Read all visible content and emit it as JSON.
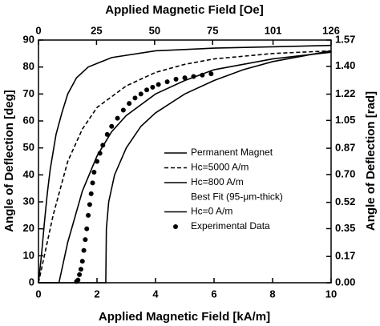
{
  "chart_data": {
    "type": "line",
    "xlabel": "Applied Magnetic Field [kA/m]",
    "x2label": "Applied Magnetic Field [Oe]",
    "ylabel": "Angle of Deflection [deg]",
    "y2label": "Angle of Deflection [rad]",
    "xlim": [
      0,
      10
    ],
    "xticks": [
      0,
      2,
      4,
      6,
      8,
      10
    ],
    "x2lim": [
      0,
      126
    ],
    "x2ticks": [
      0,
      25,
      50,
      75,
      101,
      126
    ],
    "ylim": [
      0,
      90
    ],
    "yticks": [
      0,
      10,
      20,
      30,
      40,
      50,
      60,
      70,
      80,
      90
    ],
    "y2lim": [
      0,
      1.57
    ],
    "y2ticks": [
      {
        "value": 0,
        "label": "0.00"
      },
      0.17,
      0.35,
      0.52,
      {
        "value": 0.7,
        "label": "0.70"
      },
      0.87,
      1.05,
      1.22,
      {
        "value": 1.4,
        "label": "1.40"
      },
      1.57
    ],
    "legend": "center-right",
    "series": [
      {
        "name": "Permanent Magnet",
        "kind": "line",
        "dash": false,
        "color": "#000000",
        "x": [
          0,
          2.3,
          2.32,
          2.4,
          2.6,
          3,
          3.5,
          4,
          5,
          6,
          7,
          8,
          10
        ],
        "values": [
          0,
          0,
          20,
          30,
          40,
          50,
          58,
          63,
          70,
          75,
          79,
          82,
          86
        ]
      },
      {
        "name": "Hc=5000 A/m",
        "kind": "line",
        "dash": true,
        "color": "#000000",
        "x": [
          0,
          0.5,
          1,
          1.5,
          2,
          3,
          4,
          5,
          6,
          8,
          10
        ],
        "values": [
          0,
          25,
          45,
          57,
          65,
          73,
          78,
          81,
          83,
          85,
          86
        ]
      },
      {
        "name": "Hc=800 A/m",
        "note": "Best Fit  (95-μm-thick)",
        "kind": "line",
        "dash": false,
        "color": "#000000",
        "x": [
          0,
          0.7,
          1,
          1.5,
          2,
          2.5,
          3,
          4,
          5,
          6,
          8,
          10
        ],
        "values": [
          0,
          0,
          15,
          34,
          47,
          56,
          62,
          70,
          75,
          79,
          83,
          85.5
        ]
      },
      {
        "name": "Hc=0 A/m",
        "kind": "line",
        "dash": false,
        "color": "#000000",
        "x": [
          0,
          0.1,
          0.2,
          0.3,
          0.4,
          0.6,
          0.8,
          1,
          1.3,
          1.7,
          2.5,
          4,
          6,
          8,
          10
        ],
        "values": [
          0,
          10,
          22,
          33,
          42,
          55,
          63,
          70,
          76,
          80,
          83.5,
          86,
          87,
          87.5,
          88
        ]
      },
      {
        "name": "Experimental Data",
        "kind": "scatter",
        "color": "#000000",
        "x": [
          1.3,
          1.35,
          1.4,
          1.45,
          1.5,
          1.55,
          1.6,
          1.65,
          1.7,
          1.75,
          1.8,
          1.85,
          1.9,
          2,
          2.1,
          2.2,
          2.35,
          2.5,
          2.7,
          2.9,
          3.1,
          3.3,
          3.5,
          3.7,
          3.9,
          4.1,
          4.4,
          4.7,
          5,
          5.3,
          5.6,
          5.9
        ],
        "values": [
          0.5,
          1,
          3,
          5,
          8,
          12,
          16,
          20,
          25,
          29,
          33,
          37,
          41,
          45,
          48,
          51,
          55,
          58,
          61,
          64,
          66.5,
          68.5,
          70,
          71.5,
          72.5,
          73.5,
          74.5,
          75.5,
          76,
          76.5,
          77,
          77.5
        ]
      }
    ]
  }
}
